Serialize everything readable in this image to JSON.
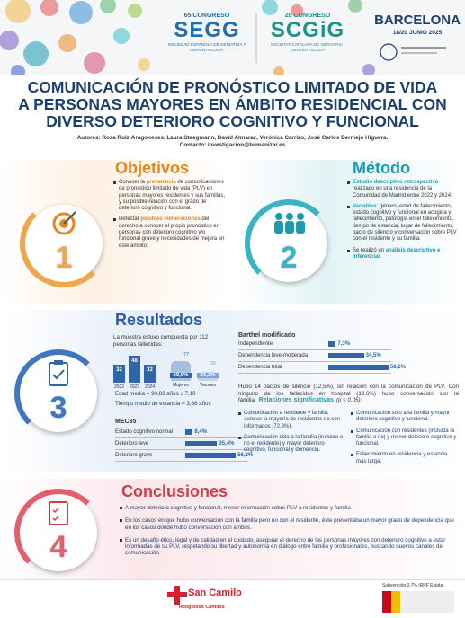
{
  "header": {
    "segg": {
      "edition": "65 CONGRESO",
      "name": "SEGG",
      "society": "SOCIEDAD ESPAÑOLA DE GERIATRÍA Y GERONTOLOGÍA"
    },
    "scgig": {
      "edition": "28 CONGRESO",
      "name": "SCGiG",
      "society": "SOCIETAT CATALANA DE GERIATRIA I GERONTOLOGIA"
    },
    "city": "BARCELONA",
    "dates": "18/20 JUNIO 2025"
  },
  "title": [
    "COMUNICACIÓN DE PRONÓSTICO LIMITADO DE VIDA",
    "A PERSONAS MAYORES EN ÁMBITO RESIDENCIAL CON",
    "DIVERSO DETERIORO COGNITIVO Y FUNCIONAL"
  ],
  "authors": "Autores: Rosa Ruiz-Aragoneses, Laura Steegmann, David Almaraz, Verónica Carrizo, José Carlos Bermejo Higuera.",
  "contact": "Contacto: investigacion@humanizar.es",
  "objectives": {
    "number": "1",
    "heading": "Objetivos",
    "bullets": [
      [
        "Conocer la ",
        {
          "text": "prevalencia"
        },
        " de comunicaciones de pronóstico limitado de vida (PLV) en personas mayores residentes y sus familias, y su posible relación con el grado de deterioro cognitivo y funcional."
      ],
      [
        "Detectar ",
        {
          "text": "posibles vulneraciones"
        },
        " del derecho a conocer el propio pronóstico en personas con deterioro cognitivo y/o funcional grave y necesidades de mejora en este ámbito."
      ]
    ]
  },
  "method": {
    "number": "2",
    "heading": "Método",
    "bullets": [
      [
        {
          "text": "Estudio descriptivo retrospectivo"
        },
        " realizado en una residencia de la Comunidad de Madrid entre 2022 y 2024."
      ],
      [
        {
          "text": "Variables:"
        },
        " género, edad de fallecimiento, estado cognitivo y funcional en acogida y fallecimiento, patología en el fallecimiento, tiempo de estancia, lugar de fallecimiento, pacto de silencio y conversación sobre PLV con el residente y su familia."
      ],
      [
        "Se realizó un ",
        {
          "text": "análisis descriptivo e inferencial."
        }
      ]
    ]
  },
  "results": {
    "number": "3",
    "heading": "Resultados",
    "sample": "La muestra estuvo compuesta por 112 personas fallecidas:",
    "years": {
      "labels": [
        "2022",
        "2023",
        "2024"
      ],
      "values": [
        32,
        48,
        32
      ]
    },
    "sex": {
      "labels": [
        "Mujeres",
        "Varones"
      ],
      "counts": [
        77,
        35
      ],
      "values": [
        68.8,
        31.3
      ],
      "value_labels": [
        "68,8%",
        "31,3%"
      ]
    },
    "age": "Edad media = 90,83 años ± 7,18",
    "stay": "Tiempo medio de estancia = 3,88 años",
    "mec35": {
      "title": "MEC35",
      "categories": [
        "Estado cognitivo normal",
        "Deterioro leve",
        "Deterioro grave"
      ],
      "values": [
        8.4,
        35.4,
        56.2
      ],
      "value_labels": [
        "8,4%",
        "35,4%",
        "56,2%"
      ]
    },
    "barthel": {
      "title": "Barthel modificado",
      "categories": [
        "Independiente",
        "Dependencia leve-moderada",
        "Dependencia total"
      ],
      "values": [
        7.3,
        34.5,
        58.2
      ],
      "value_labels": [
        "7,3%",
        "34,5%",
        "58,2%"
      ]
    },
    "silence": "Hubo 14 pactos de silencio (12,5%), sin relación con la comunicación de PLV. Con ninguno de los fallecidos en hospital (19,6%) hubo conversación con la familia.",
    "relations": {
      "heading": "Relaciones significativas",
      "note": "(p < 0,05):",
      "left": [
        "Comunicación a residente y familia, aunque la mayoría de residentes no son informados (72,3%).",
        "Comunicación solo a la familia (incluido o no el residente) y mayor deterioro cognitivo, funcional y demencia."
      ],
      "right": [
        "Comunicación solo a la familia y mayor deterioro cognitivo y funcional.",
        "Comunicación con residentes (incluida la familia o no) y menor deterioro cognitivo y funcional.",
        "Fallecimiento en residencia y estancia más larga."
      ]
    }
  },
  "conclusions": {
    "number": "4",
    "heading": "Conclusiones",
    "bullets": [
      "A mayor deterioro cognitivo y funcional, menor información sobre PLV a residentes y familia",
      "En los casos en que hubo conversación con la familia pero no con el residente, éste presentaba un mayor grado de dependencia que en los casos donde hubo conversación con ambos.",
      "Es un desafío ético, legal y de calidad en el cuidado, asegurar el derecho de las personas mayores con deterioro cognitivo a estar informadas de su PLV, respetando su libertad y autonomía en diálogo entre familia y profesionales, buscando nuevos canales de comunicación."
    ]
  },
  "footer": {
    "logo": "San Camilo",
    "logo_sub": "Religiosos Camilos",
    "grant": "Subvención 0,7% IRPF Estatal"
  }
}
